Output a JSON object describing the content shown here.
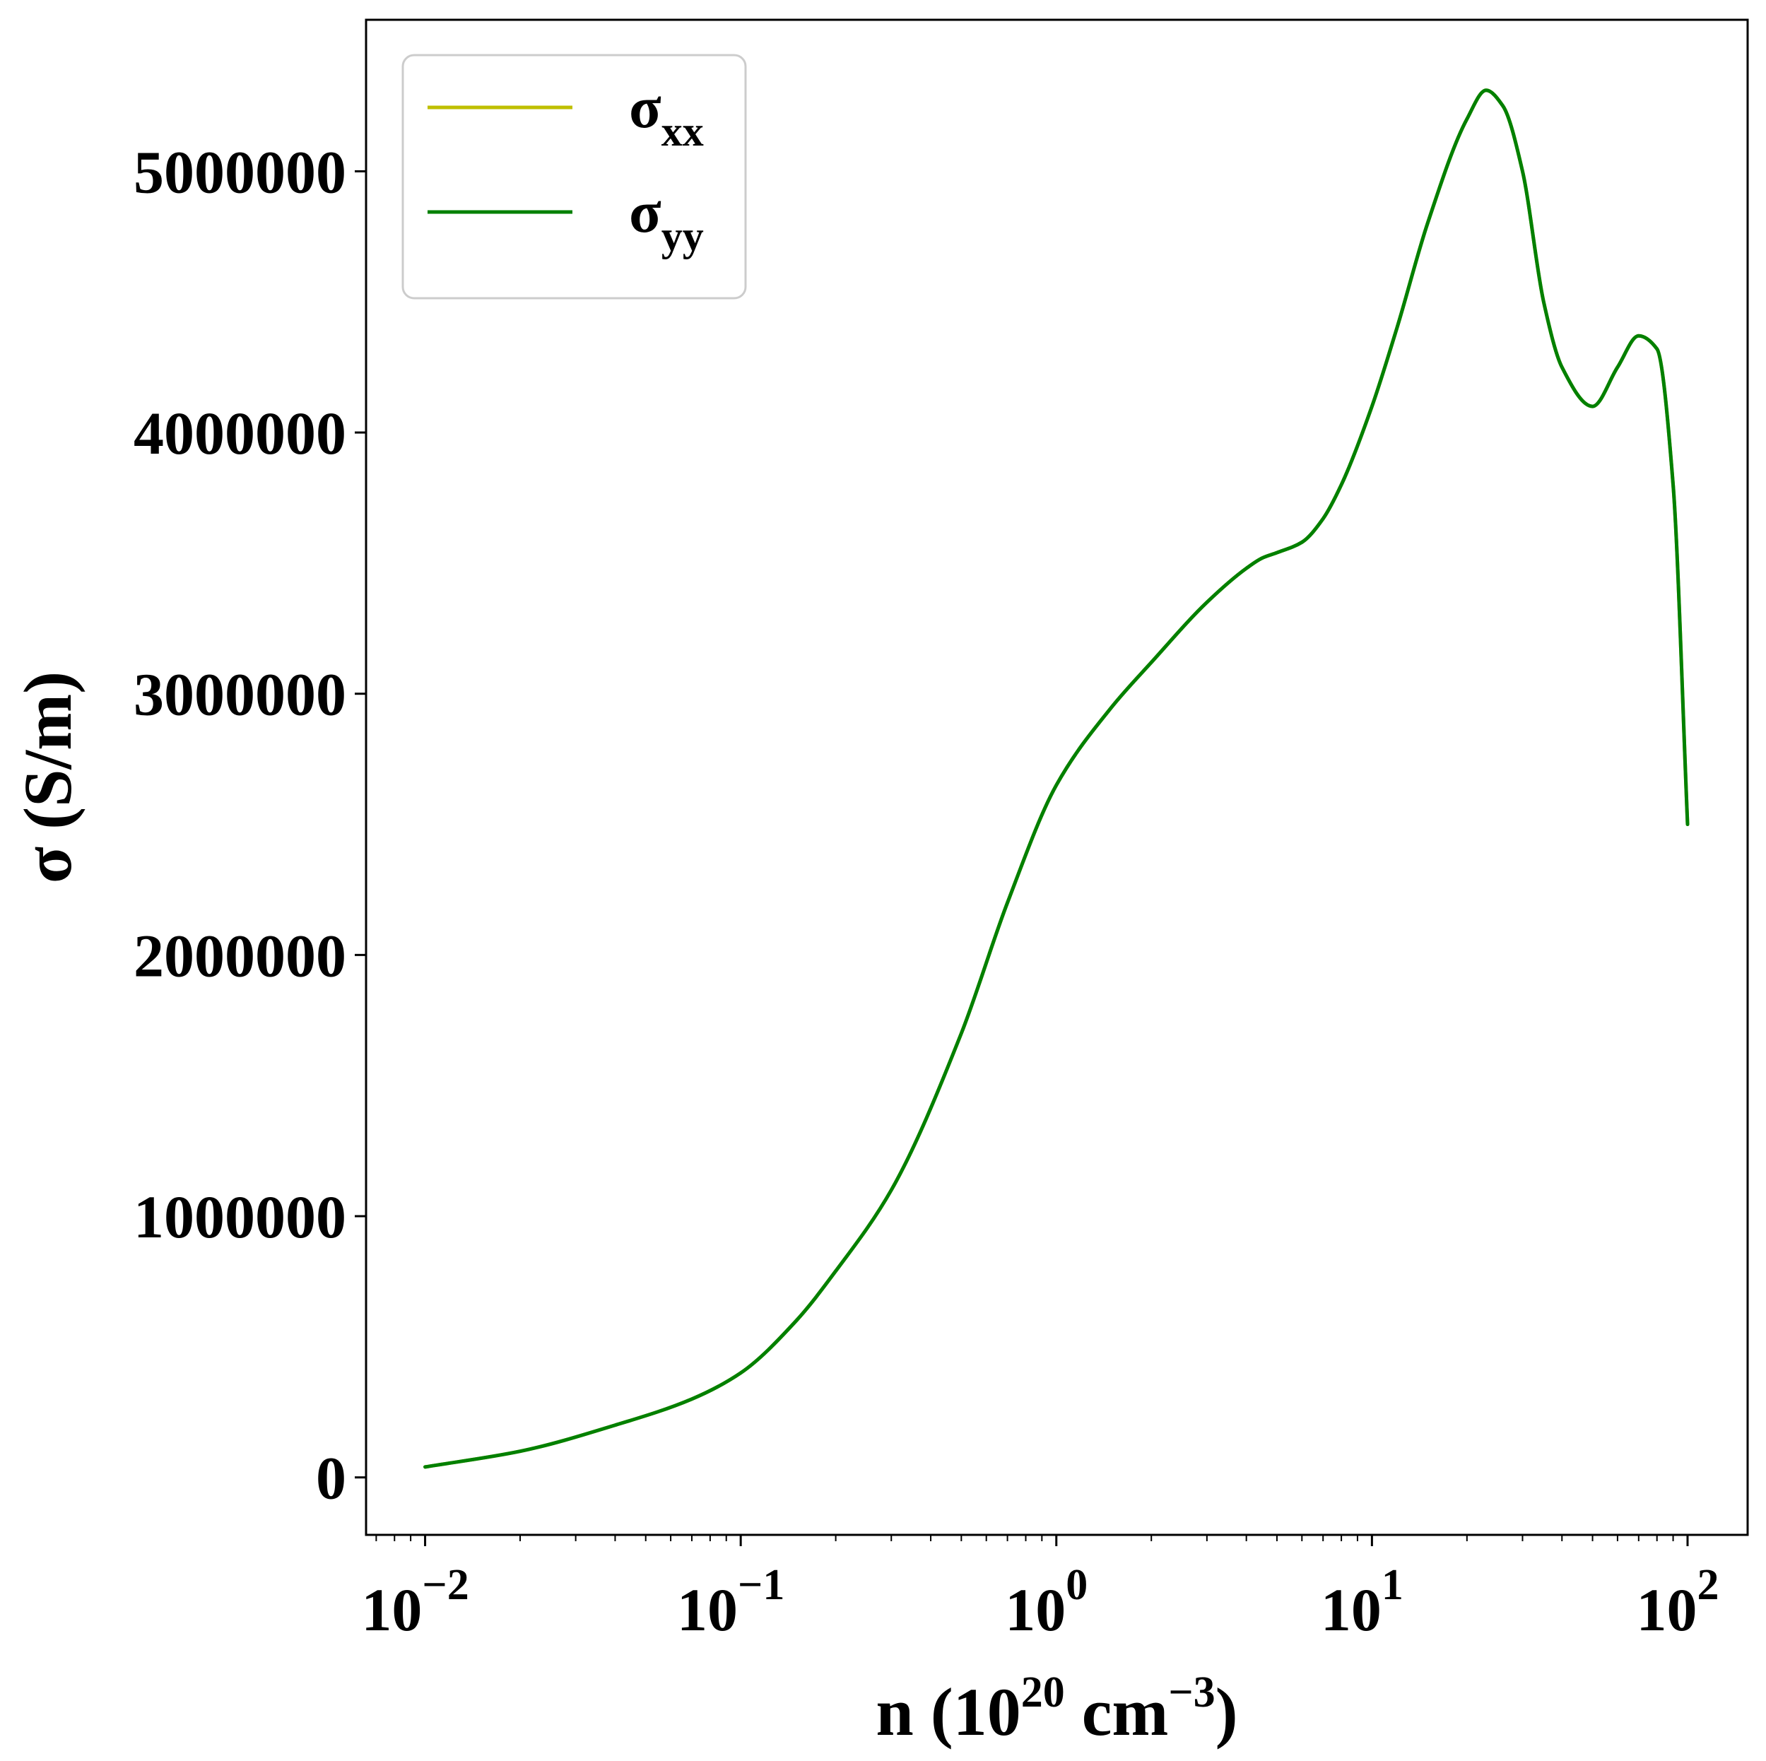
{
  "chart_data": {
    "type": "line",
    "x_scale": "log",
    "xlim": [
      0.0065,
      155
    ],
    "ylim": [
      -220000,
      5580000
    ],
    "grid": false,
    "legend_position": "top-left",
    "xlabel": {
      "main": "n (10",
      "sup1": "20",
      "mid": " cm",
      "sup2": "−3",
      "end": ")"
    },
    "ylabel": "σ (S/m)",
    "y_ticks": [
      {
        "value": 0,
        "label": "0"
      },
      {
        "value": 1000000,
        "label": "1000000"
      },
      {
        "value": 2000000,
        "label": "2000000"
      },
      {
        "value": 3000000,
        "label": "3000000"
      },
      {
        "value": 4000000,
        "label": "4000000"
      },
      {
        "value": 5000000,
        "label": "5000000"
      }
    ],
    "x_ticks": [
      {
        "value": 0.01,
        "base": "10",
        "exp": "−2"
      },
      {
        "value": 0.1,
        "base": "10",
        "exp": "−1"
      },
      {
        "value": 1,
        "base": "10",
        "exp": "0"
      },
      {
        "value": 10,
        "base": "10",
        "exp": "1"
      },
      {
        "value": 100,
        "base": "10",
        "exp": "2"
      }
    ],
    "series": [
      {
        "name": "σ",
        "name_sub": "xx",
        "color": "#bfbf00",
        "x": [
          0.01,
          0.02,
          0.04,
          0.07,
          0.1,
          0.15,
          0.2,
          0.3,
          0.5,
          0.7,
          1.0,
          1.5,
          2.0,
          3.0,
          4.0,
          4.5,
          5.0,
          6.0,
          7.0,
          8.0,
          10.0,
          12.0,
          15.0,
          20.0,
          23.0,
          26.0,
          30.0,
          35.0,
          40.0,
          50.0,
          60.0,
          70.0,
          80.0,
          90.0,
          100.0
        ],
        "values": [
          40000,
          100000,
          200000,
          300000,
          400000,
          600000,
          790000,
          1100000,
          1700000,
          2200000,
          2650000,
          2950000,
          3120000,
          3350000,
          3480000,
          3520000,
          3540000,
          3580000,
          3670000,
          3800000,
          4100000,
          4400000,
          4800000,
          5200000,
          5310000,
          5250000,
          5000000,
          4500000,
          4250000,
          4100000,
          4250000,
          4370000,
          4320000,
          3800000,
          2500000
        ]
      },
      {
        "name": "σ",
        "name_sub": "yy",
        "color": "#008000",
        "x": [
          0.01,
          0.02,
          0.04,
          0.07,
          0.1,
          0.15,
          0.2,
          0.3,
          0.5,
          0.7,
          1.0,
          1.5,
          2.0,
          3.0,
          4.0,
          4.5,
          5.0,
          6.0,
          7.0,
          8.0,
          10.0,
          12.0,
          15.0,
          20.0,
          23.0,
          26.0,
          30.0,
          35.0,
          40.0,
          50.0,
          60.0,
          70.0,
          80.0,
          90.0,
          100.0
        ],
        "values": [
          40000,
          100000,
          200000,
          300000,
          400000,
          600000,
          790000,
          1100000,
          1700000,
          2200000,
          2650000,
          2950000,
          3120000,
          3350000,
          3480000,
          3520000,
          3540000,
          3580000,
          3670000,
          3800000,
          4100000,
          4400000,
          4800000,
          5200000,
          5310000,
          5250000,
          5000000,
          4500000,
          4250000,
          4100000,
          4250000,
          4370000,
          4320000,
          3800000,
          2500000
        ]
      }
    ]
  }
}
